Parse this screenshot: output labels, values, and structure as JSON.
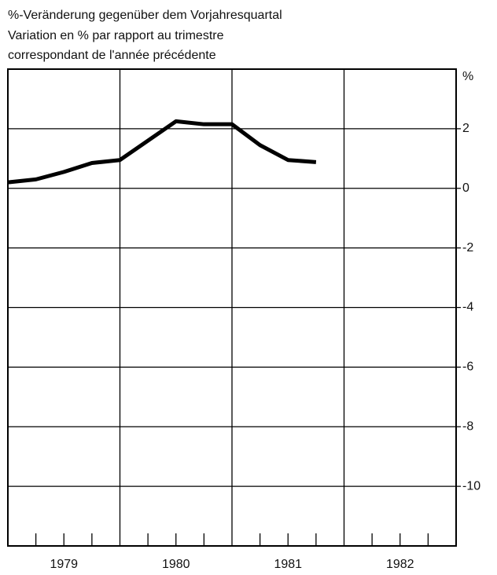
{
  "chart_data": {
    "type": "line",
    "title": [
      "%-Veränderung gegenüber dem Vorjahresquartal",
      "Variation en % par rapport au trimestre",
      "correspondant de l'année précédente"
    ],
    "ylabel": "%",
    "x": [
      1979.0,
      1979.25,
      1979.5,
      1979.75,
      1980.0,
      1980.25,
      1980.5,
      1980.75,
      1981.0,
      1981.25,
      1981.5,
      1981.75
    ],
    "series": [
      {
        "color": "#000000",
        "values": [
          0.2,
          0.3,
          0.55,
          0.85,
          0.95,
          1.6,
          2.25,
          2.15,
          2.15,
          1.45,
          0.95,
          0.88
        ]
      }
    ],
    "xlim": [
      1979,
      1983
    ],
    "xticks": [
      {
        "value": 1979.5,
        "label": "1979"
      },
      {
        "value": 1980.5,
        "label": "1980"
      },
      {
        "value": 1981.5,
        "label": "1981"
      },
      {
        "value": 1982.5,
        "label": "1982"
      }
    ],
    "xgrid": [
      1980,
      1981,
      1982
    ],
    "xminor": [
      1979.25,
      1979.5,
      1979.75,
      1980.25,
      1980.5,
      1980.75,
      1981.25,
      1981.5,
      1981.75,
      1982.25,
      1982.5,
      1982.75
    ],
    "ylim": [
      -12,
      4
    ],
    "yticks": [
      -10,
      -8,
      -6,
      -4,
      -2,
      0,
      2
    ],
    "grid": true
  }
}
